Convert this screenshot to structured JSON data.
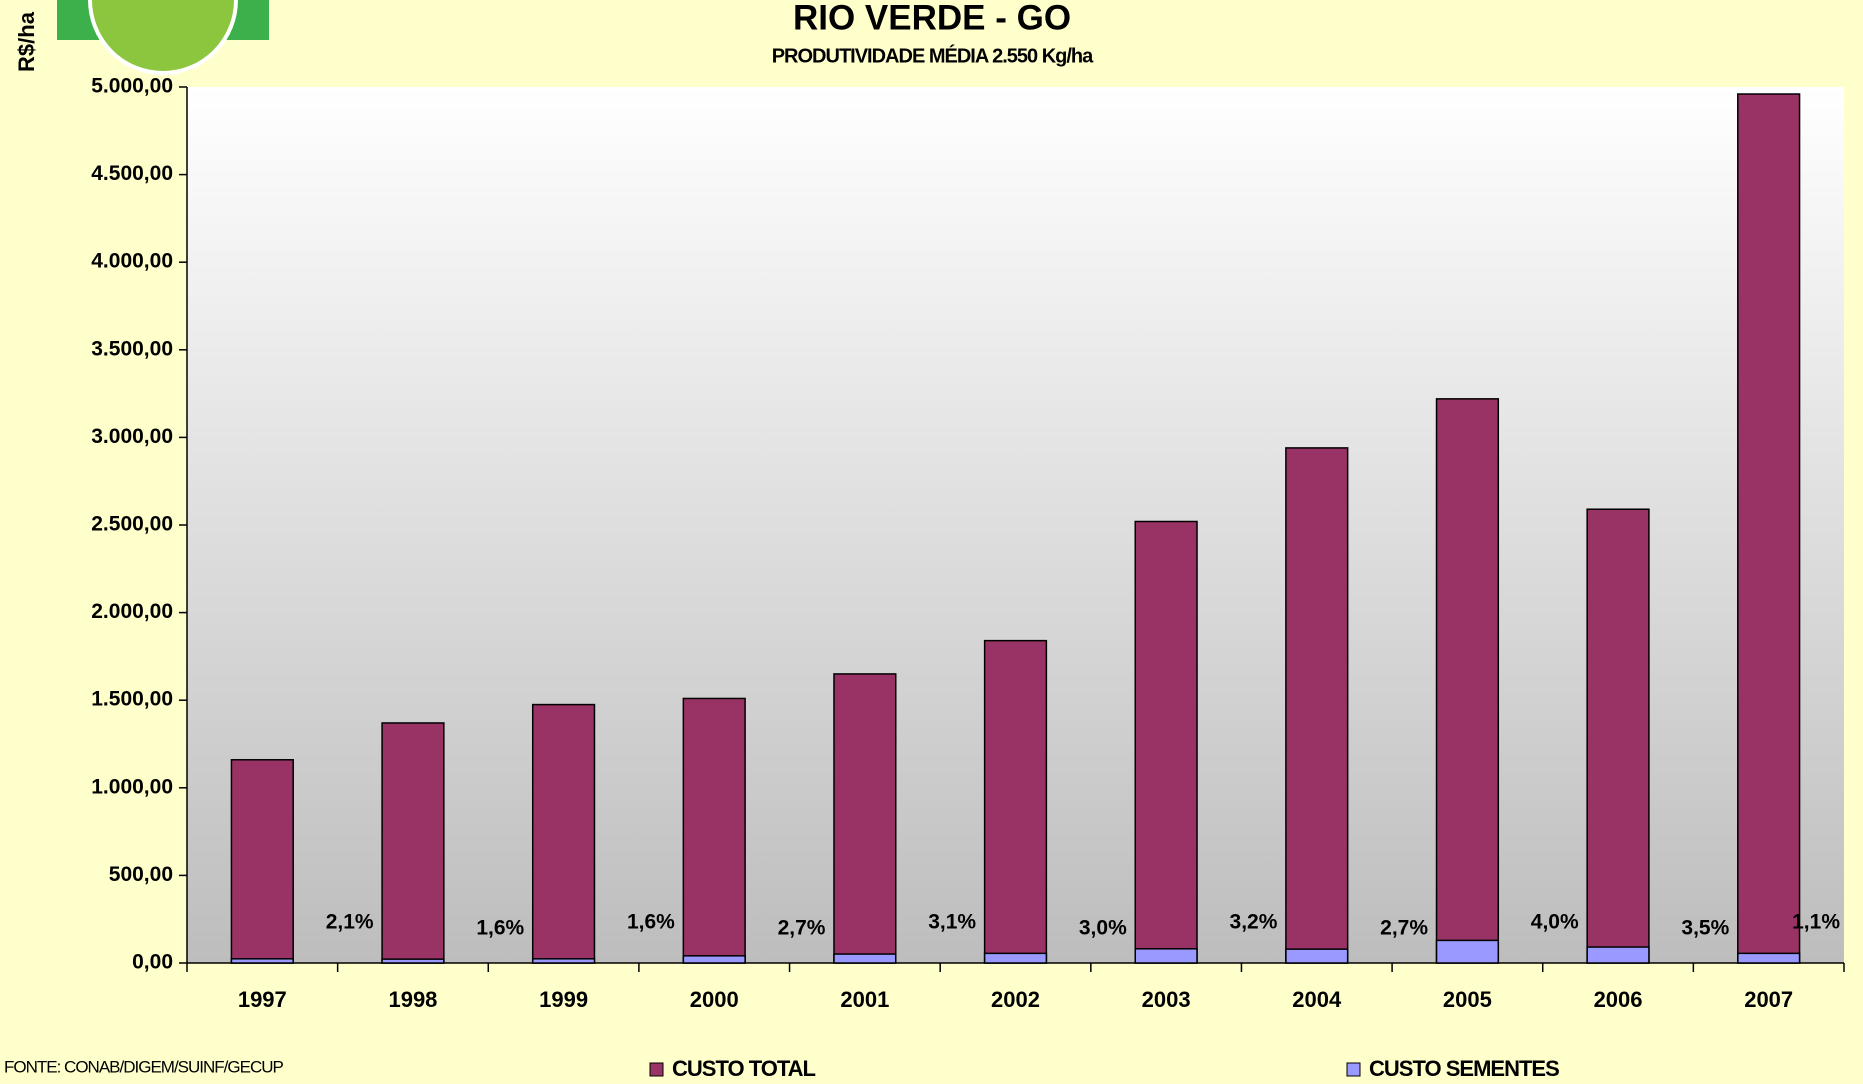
{
  "chart_data": {
    "type": "bar",
    "title": "RIO VERDE - GO",
    "subtitle": "PRODUTIVIDADE MÉDIA 2.550 Kg/ha",
    "y_label": "R$/ha",
    "source": "FONTE: CONAB/DIGEM/SUINF/GECUP",
    "categories": [
      "1997",
      "1998",
      "1999",
      "2000",
      "2001",
      "2002",
      "2003",
      "2004",
      "2005",
      "2006",
      "2007"
    ],
    "series": [
      {
        "name": "CUSTO TOTAL",
        "color": "#993366",
        "values": [
          1160,
          1370,
          1475,
          1510,
          1650,
          1840,
          2520,
          2940,
          3220,
          2590,
          4960
        ]
      },
      {
        "name": "CUSTO SEMENTES",
        "color": "#9999ff",
        "values": [
          24,
          22,
          24,
          41,
          51,
          55,
          81,
          79,
          129,
          91,
          55
        ]
      }
    ],
    "shares": [
      2.1,
      1.6,
      1.6,
      2.7,
      3.1,
      3.0,
      3.2,
      2.7,
      4.0,
      3.5,
      1.1
    ],
    "share_labels": [
      "2,1%",
      "1,6%",
      "1,6%",
      "2,7%",
      "3,1%",
      "3,0%",
      "3,2%",
      "2,7%",
      "4,0%",
      "3,5%",
      "1,1%"
    ],
    "ylim": [
      0,
      5000
    ],
    "yticks": [
      {
        "value": 0,
        "label": "0,00"
      },
      {
        "value": 500,
        "label": "500,00"
      },
      {
        "value": 1000,
        "label": "1.000,00"
      },
      {
        "value": 1500,
        "label": "1.500,00"
      },
      {
        "value": 2000,
        "label": "2.000,00"
      },
      {
        "value": 2500,
        "label": "2.500,00"
      },
      {
        "value": 3000,
        "label": "3.000,00"
      },
      {
        "value": 3500,
        "label": "3.500,00"
      },
      {
        "value": 4000,
        "label": "4.000,00"
      },
      {
        "value": 4500,
        "label": "4.500,00"
      },
      {
        "value": 5000,
        "label": "5.000,00"
      }
    ],
    "grid": false,
    "overlap": true
  }
}
